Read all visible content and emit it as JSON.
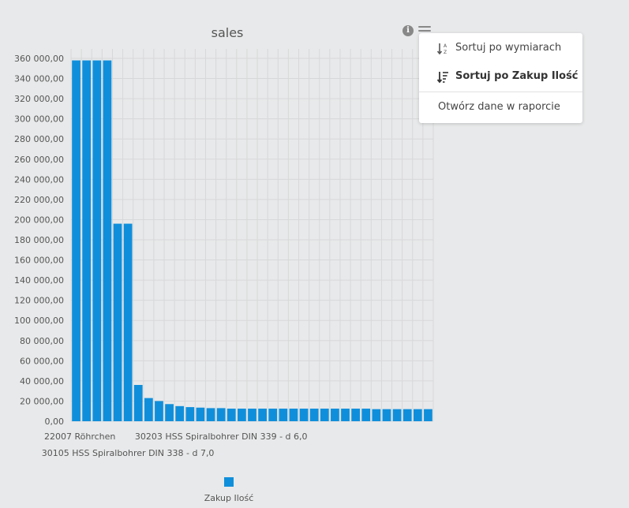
{
  "chart_data": {
    "type": "bar",
    "title": "sales",
    "ylim": [
      0,
      370000
    ],
    "yticks": [
      "0,00",
      "20 000,00",
      "40 000,00",
      "60 000,00",
      "80 000,00",
      "100 000,00",
      "120 000,00",
      "140 000,00",
      "160 000,00",
      "180 000,00",
      "200 000,00",
      "220 000,00",
      "240 000,00",
      "260 000,00",
      "280 000,00",
      "300 000,00",
      "320 000,00",
      "340 000,00",
      "360 000,00"
    ],
    "ytick_values": [
      0,
      20000,
      40000,
      60000,
      80000,
      100000,
      120000,
      140000,
      160000,
      180000,
      200000,
      220000,
      240000,
      260000,
      280000,
      300000,
      320000,
      340000,
      360000
    ],
    "x_labels_shown": [
      "22007 Röhrchen",
      "30105 HSS Spiralbohrer DIN 338 - d 7,0",
      "30203 HSS Spiralbohrer DIN 339 - d 6,0"
    ],
    "x_label_indices": [
      0,
      5,
      14
    ],
    "grid": true,
    "legend_placement": "bottom",
    "series": [
      {
        "name": "Zakup Ilość",
        "color": "#0f8fdb",
        "values": [
          358000,
          358000,
          358000,
          358000,
          196000,
          196000,
          36000,
          23000,
          20000,
          17000,
          15000,
          14000,
          13500,
          13000,
          13000,
          12500,
          12500,
          12500,
          12500,
          12500,
          12500,
          12500,
          12500,
          12500,
          12500,
          12500,
          12500,
          12500,
          12500,
          12000,
          12000,
          12000,
          12000,
          12000,
          12000
        ]
      }
    ]
  },
  "toolbar": {
    "info_icon": "info-icon",
    "menu_icon": "hamburger-icon",
    "info_glyph": "i"
  },
  "context_menu": {
    "items": [
      {
        "label": "Sortuj po wymiarach",
        "icon": "sort-alpha-icon"
      },
      {
        "label": "Sortuj po Zakup Ilość",
        "icon": "sort-amount-icon"
      },
      {
        "label": "Otwórz dane w raporcie"
      }
    ]
  }
}
